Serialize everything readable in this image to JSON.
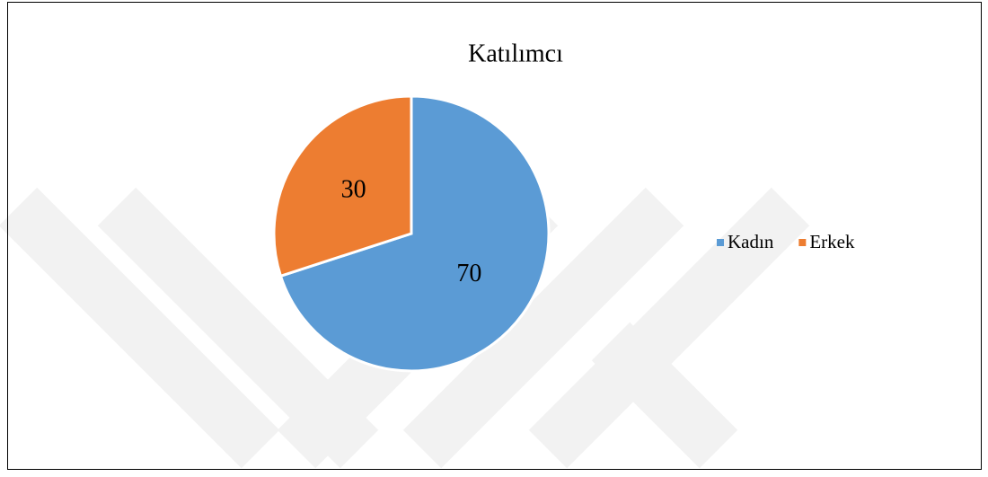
{
  "chart_data": {
    "type": "pie",
    "title": "Katılımcı",
    "categories": [
      "Kadın",
      "Erkek"
    ],
    "values": [
      70,
      30
    ],
    "colors": [
      "#5b9bd5",
      "#ed7d31"
    ],
    "legend": "right"
  }
}
